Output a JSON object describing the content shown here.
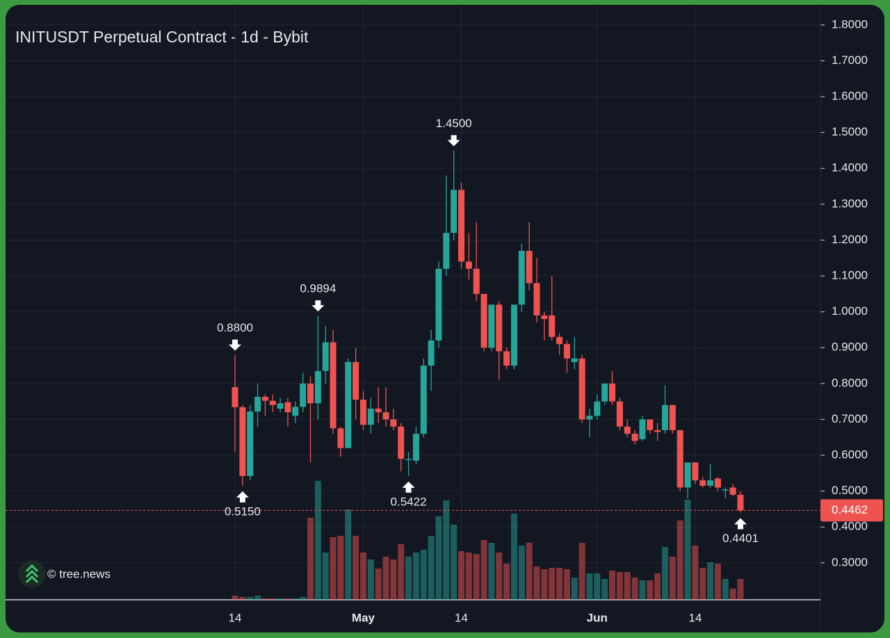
{
  "chart_data": {
    "type": "candlestick",
    "title": "INITUSDT Perpetual Contract - 1d - Bybit",
    "watermark": "© tree.news",
    "categories": [
      "14",
      null,
      null,
      null,
      null,
      null,
      null,
      null,
      null,
      null,
      null,
      null,
      null,
      null,
      null,
      null,
      null,
      "May",
      null,
      null,
      null,
      null,
      null,
      null,
      null,
      null,
      null,
      null,
      null,
      null,
      "14",
      null,
      null,
      null,
      null,
      null,
      null,
      null,
      null,
      null,
      null,
      null,
      null,
      null,
      null,
      null,
      null,
      null,
      "Jun",
      null,
      null,
      null,
      null,
      null,
      null,
      null,
      null,
      null,
      null,
      null,
      null,
      "14",
      null,
      null,
      null,
      null,
      null,
      null
    ],
    "open": [
      0.79,
      0.734,
      0.542,
      0.722,
      0.763,
      0.752,
      0.73,
      0.748,
      0.71,
      0.735,
      0.8,
      0.745,
      0.835,
      0.915,
      0.675,
      0.62,
      0.86,
      0.755,
      0.685,
      0.73,
      0.72,
      0.7,
      0.68,
      0.59,
      0.585,
      0.66,
      0.85,
      0.92,
      1.12,
      1.22,
      1.34,
      1.14,
      1.12,
      1.05,
      0.9,
      1.02,
      0.89,
      0.85,
      1.02,
      1.17,
      1.08,
      0.99,
      0.99,
      0.93,
      0.91,
      0.86,
      0.87,
      0.7,
      0.71,
      0.75,
      0.8,
      0.75,
      0.68,
      0.66,
      0.645,
      0.7,
      0.67,
      0.67,
      0.74,
      0.67,
      0.51,
      0.58,
      0.53,
      0.515,
      0.535,
      0.505,
      0.51,
      0.49
    ],
    "high": [
      0.88,
      0.74,
      0.74,
      0.8,
      0.77,
      0.77,
      0.76,
      0.76,
      0.75,
      0.83,
      0.82,
      0.9894,
      0.96,
      0.95,
      0.68,
      0.87,
      0.9,
      0.78,
      0.76,
      0.79,
      0.79,
      0.73,
      0.69,
      0.61,
      0.68,
      0.87,
      0.95,
      1.14,
      1.38,
      1.45,
      1.36,
      1.22,
      1.25,
      1.05,
      1.02,
      1.03,
      0.9,
      1.02,
      1.19,
      1.25,
      1.15,
      1.0,
      1.1,
      0.94,
      0.92,
      0.93,
      0.88,
      0.73,
      0.77,
      0.8,
      0.835,
      0.76,
      0.7,
      0.67,
      0.71,
      0.7,
      0.69,
      0.795,
      0.74,
      0.67,
      0.58,
      0.58,
      0.54,
      0.575,
      0.54,
      0.51,
      0.52,
      0.5
    ],
    "low": [
      0.61,
      0.515,
      0.53,
      0.68,
      0.71,
      0.72,
      0.72,
      0.68,
      0.69,
      0.72,
      0.58,
      0.7,
      0.8,
      0.66,
      0.595,
      0.62,
      0.7,
      0.67,
      0.66,
      0.69,
      0.68,
      0.67,
      0.555,
      0.5422,
      0.575,
      0.65,
      0.78,
      0.9,
      1.1,
      1.2,
      1.12,
      1.09,
      1.03,
      0.89,
      0.89,
      0.81,
      0.84,
      0.84,
      1.0,
      1.06,
      0.97,
      0.92,
      0.92,
      0.88,
      0.83,
      0.84,
      0.69,
      0.65,
      0.7,
      0.74,
      0.74,
      0.67,
      0.65,
      0.63,
      0.64,
      0.66,
      0.64,
      0.66,
      0.66,
      0.5,
      0.48,
      0.52,
      0.51,
      0.51,
      0.5,
      0.48,
      0.485,
      0.4401
    ],
    "close": [
      0.734,
      0.542,
      0.722,
      0.763,
      0.752,
      0.74,
      0.745,
      0.72,
      0.735,
      0.8,
      0.745,
      0.835,
      0.915,
      0.675,
      0.62,
      0.86,
      0.755,
      0.685,
      0.73,
      0.72,
      0.7,
      0.68,
      0.59,
      0.59,
      0.66,
      0.85,
      0.92,
      1.12,
      1.22,
      1.34,
      1.14,
      1.12,
      1.05,
      0.9,
      1.02,
      0.89,
      0.85,
      1.02,
      1.17,
      1.08,
      0.99,
      0.98,
      0.93,
      0.91,
      0.87,
      0.87,
      0.7,
      0.71,
      0.75,
      0.8,
      0.75,
      0.68,
      0.66,
      0.64,
      0.7,
      0.67,
      0.665,
      0.74,
      0.67,
      0.51,
      0.58,
      0.53,
      0.515,
      0.53,
      0.51,
      0.505,
      0.49,
      0.4462
    ],
    "volume": [
      6,
      4,
      4,
      6,
      2,
      2,
      2,
      2,
      2,
      4,
      118,
      171,
      68,
      90,
      92,
      130,
      92,
      68,
      58,
      45,
      62,
      58,
      80,
      62,
      68,
      72,
      92,
      120,
      143,
      108,
      70,
      68,
      66,
      86,
      82,
      68,
      52,
      124,
      78,
      82,
      48,
      44,
      46,
      46,
      44,
      32,
      82,
      38,
      38,
      30,
      42,
      40,
      40,
      32,
      28,
      28,
      38,
      76,
      62,
      114,
      144,
      78,
      46,
      54,
      52,
      30,
      16,
      30
    ],
    "up_color": "#26a69a",
    "down_color": "#ef5350",
    "ylim": [
      0.197,
      1.854
    ],
    "yticks": [
      {
        "value": 0.3,
        "label": "0.3000"
      },
      {
        "value": 0.4,
        "label": "0.4000"
      },
      {
        "value": 0.5,
        "label": "0.5000"
      },
      {
        "value": 0.6,
        "label": "0.6000"
      },
      {
        "value": 0.7,
        "label": "0.7000"
      },
      {
        "value": 0.8,
        "label": "0.8000"
      },
      {
        "value": 0.9,
        "label": "0.9000"
      },
      {
        "value": 1.0,
        "label": "1.0000"
      },
      {
        "value": 1.1,
        "label": "1.1000"
      },
      {
        "value": 1.2,
        "label": "1.2000"
      },
      {
        "value": 1.3,
        "label": "1.3000"
      },
      {
        "value": 1.4,
        "label": "1.4000"
      },
      {
        "value": 1.5,
        "label": "1.5000"
      },
      {
        "value": 1.6,
        "label": "1.6000"
      },
      {
        "value": 1.7,
        "label": "1.7000"
      },
      {
        "value": 1.8,
        "label": "1.8000"
      }
    ],
    "grid": true,
    "last_price": 0.4462,
    "annotations": [
      {
        "value": 0.88,
        "label": "0.8800"
      },
      0.9894,
      {
        "value": 1.45,
        "label": "1.4500"
      },
      {
        "value": 0.515,
        "label": "0.5150"
      },
      0.5422,
      0.4401
    ]
  }
}
